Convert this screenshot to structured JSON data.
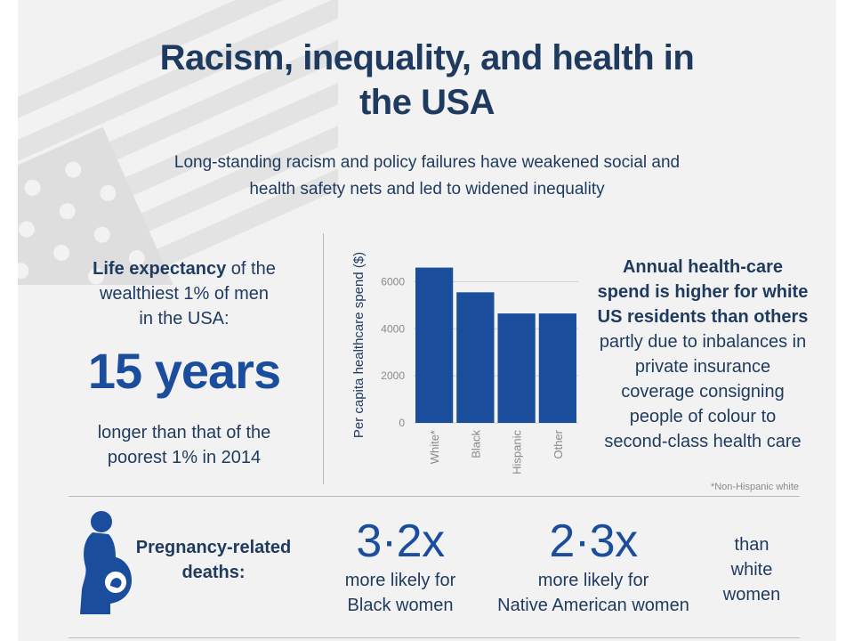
{
  "title": {
    "line1": "Racism, inequality, and health in",
    "line2": "the USA"
  },
  "subtitle": {
    "line1": "Long-standing racism and policy failures have weakened social and",
    "line2": "health safety nets and led to widened inequality"
  },
  "life_expectancy": {
    "bold": "Life expectancy",
    "rest1": " of the",
    "line2": "wealthiest 1% of men",
    "line3": "in the USA:",
    "big": "15 years",
    "line4": "longer than that of the",
    "line5": "poorest 1% in 2014"
  },
  "chart_data": {
    "type": "bar",
    "ylabel": "Per capita healthcare spend ($)",
    "categories": [
      "White*",
      "Black",
      "Hispanic",
      "Other"
    ],
    "values": [
      6600,
      5550,
      4650,
      4650
    ],
    "yticks": [
      0,
      2000,
      4000,
      6000
    ],
    "ylim": [
      0,
      7000
    ],
    "bar_color": "#1a4d9c",
    "grid": true
  },
  "spend_text": {
    "bold1": "Annual health-care",
    "bold2": "spend is higher for white",
    "bold3": "US residents than others",
    "line1": "partly due to inbalances in",
    "line2": "private insurance",
    "line3": "coverage consigning",
    "line4": "people of colour to",
    "line5": "second-class health care"
  },
  "footnote": "*Non-Hispanic white",
  "pregnancy": {
    "icon": "pregnant-woman-icon",
    "label1": "Pregnancy-related",
    "label2": "deaths:",
    "stat1": {
      "num": "3·2x",
      "line1": "more likely for",
      "line2": "Black women"
    },
    "stat2": {
      "num": "2·3x",
      "line1": "more likely for",
      "line2": "Native American women"
    },
    "than1": "than",
    "than2": "white",
    "than3": "women"
  },
  "colors": {
    "navy": "#1e3a5f",
    "blue": "#1a4d9c",
    "background": "#f2f2f2"
  }
}
